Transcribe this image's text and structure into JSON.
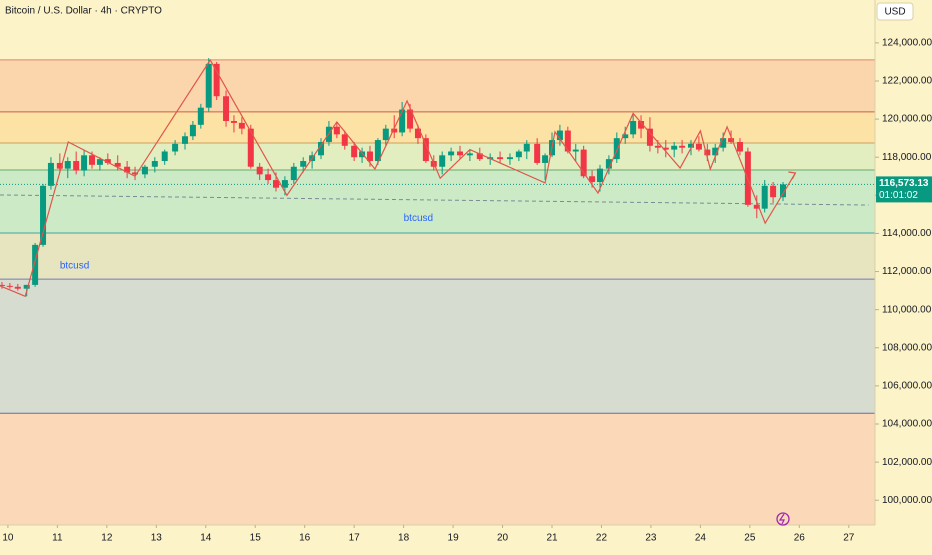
{
  "chart_data": {
    "type": "candlestick",
    "title": "Bitcoin / U.S. Dollar · 4h · CRYPTO",
    "currency": "USD",
    "up_color": "#089981",
    "down_color": "#f23645",
    "xlim": [
      9.84,
      27.53
    ],
    "xticks": [
      10,
      11,
      12,
      13,
      14,
      15,
      16,
      17,
      18,
      19,
      20,
      21,
      22,
      23,
      24,
      25,
      26,
      27
    ],
    "ylim": [
      98700,
      126250
    ],
    "yticks": [
      {
        "value": 124000,
        "label": "124,000.00"
      },
      {
        "value": 122000,
        "label": "122,000.00"
      },
      {
        "value": 120000,
        "label": "120,000.00"
      },
      {
        "value": 118000,
        "label": "118,000.00"
      },
      {
        "value": 116000,
        "label": "116,000.00"
      },
      {
        "value": 114000,
        "label": "114,000.00"
      },
      {
        "value": 112000,
        "label": "112,000.00"
      },
      {
        "value": 110000,
        "label": "110,000.00"
      },
      {
        "value": 108000,
        "label": "108,000.00"
      },
      {
        "value": 106000,
        "label": "106,000.00"
      },
      {
        "value": 104000,
        "label": "104,000.00"
      },
      {
        "value": 102000,
        "label": "102,000.00"
      },
      {
        "value": 100000,
        "label": "100,000.00"
      }
    ],
    "zones": [
      {
        "from": 123107,
        "to": 126250,
        "color": "#fdf3c8",
        "line": "#e0866a"
      },
      {
        "from": 120376,
        "to": 123107,
        "color": "#fbd6ad",
        "line": "#c9604a"
      },
      {
        "from": 118748,
        "to": 120376,
        "color": "#fde2a5",
        "line": "#c8a060"
      },
      {
        "from": 117330,
        "to": 118748,
        "color": "#e2eebf",
        "line": "#6aa86a"
      },
      {
        "from": 114021,
        "to": 117330,
        "color": "#cdeac6",
        "line": "#3fa5a0"
      },
      {
        "from": 111605,
        "to": 114021,
        "color": "#e6e5bf",
        "line": "#7a7ab8"
      },
      {
        "from": 104567,
        "to": 111605,
        "color": "#d6dccf",
        "line": "#6a6ab0"
      },
      {
        "from": 98700,
        "to": 104567,
        "color": "#fbd9b8",
        "line": "#6a6ab0"
      }
    ],
    "x": [
      9.88,
      10.04,
      10.2,
      10.38,
      10.55,
      10.71,
      10.87,
      11.05,
      11.21,
      11.38,
      11.54,
      11.7,
      11.86,
      12.02,
      12.22,
      12.41,
      12.57,
      12.77,
      12.97,
      13.17,
      13.38,
      13.58,
      13.74,
      13.9,
      14.06,
      14.22,
      14.41,
      14.57,
      14.73,
      14.91,
      15.09,
      15.26,
      15.42,
      15.6,
      15.78,
      15.97,
      16.15,
      16.33,
      16.49,
      16.65,
      16.81,
      17.0,
      17.16,
      17.32,
      17.48,
      17.64,
      17.81,
      17.97,
      18.13,
      18.29,
      18.45,
      18.61,
      18.78,
      18.96,
      19.14,
      19.34,
      19.54,
      19.75,
      19.95,
      20.15,
      20.33,
      20.49,
      20.7,
      20.86,
      21.0,
      21.16,
      21.32,
      21.48,
      21.64,
      21.81,
      21.97,
      22.15,
      22.31,
      22.48,
      22.64,
      22.8,
      22.98,
      23.14,
      23.3,
      23.47,
      23.63,
      23.81,
      23.97,
      24.14,
      24.3,
      24.46,
      24.62,
      24.8,
      24.96,
      25.14,
      25.3,
      25.47,
      25.67
    ],
    "open": [
      111300,
      111250,
      111200,
      111100,
      111300,
      113400,
      116500,
      117700,
      117400,
      117800,
      117300,
      118100,
      117600,
      117900,
      117700,
      117500,
      117200,
      117100,
      117500,
      117800,
      118300,
      118700,
      119100,
      119700,
      120600,
      122900,
      121200,
      119900,
      119800,
      119500,
      117500,
      117100,
      116800,
      116400,
      116800,
      117500,
      117800,
      118100,
      118800,
      119600,
      119200,
      118600,
      118000,
      118300,
      117800,
      118900,
      119500,
      119300,
      120500,
      119500,
      119000,
      117800,
      117500,
      118100,
      118300,
      118100,
      118200,
      117900,
      118000,
      117900,
      118000,
      118300,
      118700,
      117700,
      118100,
      118900,
      119400,
      118300,
      118400,
      117000,
      116700,
      117400,
      117900,
      119000,
      119200,
      119900,
      119500,
      118600,
      118500,
      118400,
      118600,
      118500,
      118700,
      118400,
      118100,
      118500,
      119000,
      118800,
      118300,
      115500,
      115300,
      116500,
      115900
    ],
    "high": [
      111450,
      111400,
      111350,
      111300,
      113500,
      116600,
      118000,
      118200,
      118000,
      118300,
      118400,
      118300,
      118000,
      118200,
      118100,
      117800,
      117500,
      117600,
      118000,
      118400,
      118900,
      119300,
      119900,
      120800,
      123200,
      123000,
      121500,
      120200,
      120100,
      119700,
      117700,
      117400,
      117200,
      117000,
      117700,
      118000,
      118300,
      119000,
      119900,
      119800,
      119400,
      118800,
      118500,
      118600,
      119000,
      119700,
      120200,
      120900,
      120800,
      119700,
      119200,
      118100,
      118300,
      118500,
      118600,
      118400,
      118500,
      118200,
      118300,
      118200,
      118400,
      118900,
      119000,
      118200,
      119300,
      119700,
      119600,
      118700,
      118600,
      117300,
      117600,
      118100,
      119300,
      119600,
      120300,
      120200,
      120100,
      118900,
      118900,
      118800,
      118900,
      118900,
      119100,
      118700,
      118700,
      119300,
      119400,
      119000,
      118500,
      116000,
      116800,
      116700,
      116700
    ],
    "low": [
      111100,
      111100,
      111000,
      110700,
      111200,
      113300,
      116300,
      117200,
      116900,
      117100,
      117000,
      117400,
      117300,
      117600,
      117300,
      116900,
      116800,
      116900,
      117200,
      117600,
      118100,
      118400,
      118900,
      119500,
      120400,
      121000,
      119600,
      119300,
      119200,
      117400,
      116800,
      116600,
      116200,
      116000,
      116600,
      117200,
      117400,
      117900,
      118600,
      119000,
      118400,
      117800,
      117700,
      117500,
      117600,
      118600,
      119000,
      119100,
      119300,
      118700,
      117700,
      117300,
      117100,
      117800,
      117900,
      117800,
      117800,
      117600,
      117700,
      117600,
      117800,
      117900,
      117600,
      116800,
      118000,
      118600,
      118200,
      117800,
      116900,
      116400,
      116200,
      117100,
      117700,
      118700,
      119000,
      119000,
      118300,
      118200,
      118000,
      118000,
      118200,
      118100,
      118300,
      117800,
      117700,
      118300,
      118700,
      118100,
      115400,
      114800,
      115100,
      115600,
      115700
    ],
    "close": [
      111250,
      111200,
      111100,
      111300,
      113400,
      116500,
      117700,
      117400,
      117800,
      117300,
      118100,
      117600,
      117900,
      117700,
      117500,
      117200,
      117100,
      117500,
      117800,
      118300,
      118700,
      119100,
      119700,
      120600,
      122900,
      121200,
      119900,
      119800,
      119500,
      117500,
      117100,
      116800,
      116400,
      116800,
      117500,
      117800,
      118100,
      118800,
      119600,
      119200,
      118600,
      118000,
      118300,
      117800,
      118900,
      119500,
      119300,
      120500,
      119500,
      119000,
      117800,
      117500,
      118100,
      118300,
      118100,
      118200,
      117900,
      118000,
      117900,
      118000,
      118300,
      118700,
      117700,
      118100,
      118900,
      119400,
      118300,
      118400,
      117000,
      116700,
      117400,
      117900,
      119000,
      119200,
      119900,
      119500,
      118600,
      118500,
      118400,
      118600,
      118500,
      118700,
      118400,
      118100,
      118500,
      119000,
      118800,
      118300,
      115500,
      115300,
      116500,
      115900,
      116573.13
    ],
    "zigzag": {
      "color": "#e0564a",
      "x": [
        9.84,
        10.35,
        11.22,
        12.57,
        14.09,
        15.64,
        16.65,
        17.42,
        18.07,
        18.74,
        19.34,
        20.86,
        21.06,
        21.93,
        22.64,
        23.59,
        24.0,
        24.2,
        24.54,
        25.31,
        25.92
      ],
      "values": [
        111250,
        110700,
        118800,
        117000,
        123100,
        116000,
        119850,
        117380,
        120950,
        116900,
        118400,
        116650,
        119330,
        116120,
        120300,
        117430,
        119380,
        117380,
        119590,
        114540,
        117170
      ]
    },
    "trendline": {
      "color": "#7b8a95",
      "x": [
        9.84,
        27.4
      ],
      "values": [
        116020,
        115490
      ]
    },
    "notes": [
      {
        "text": "btcusd",
        "x": 11.05,
        "y": 112300
      },
      {
        "text": "btcusd",
        "x": 18.0,
        "y": 114800
      }
    ],
    "price_tag": {
      "value": 116573.13,
      "label": "116,573.13",
      "countdown": "01:01:02"
    }
  }
}
